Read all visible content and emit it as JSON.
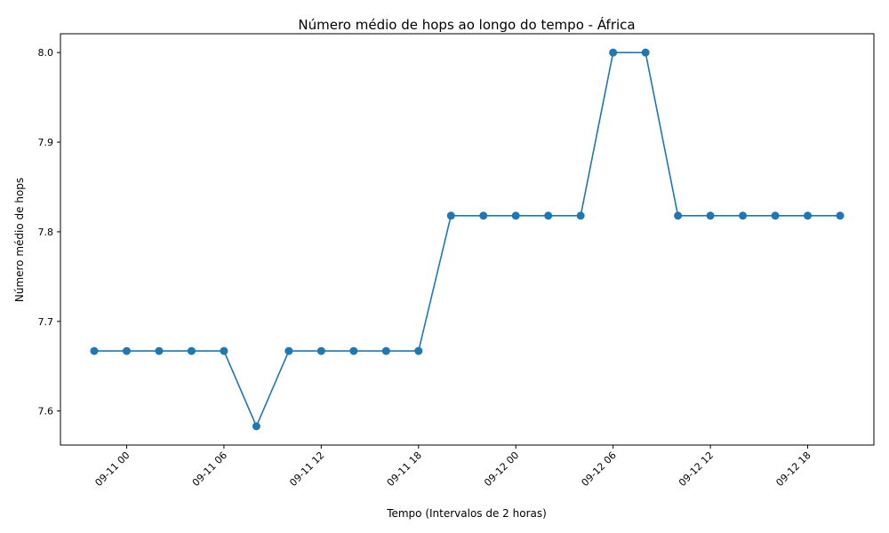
{
  "chart_data": {
    "type": "line",
    "title": "Número médio de hops ao longo do tempo - África",
    "xlabel": "Tempo (Intervalos de 2 horas)",
    "ylabel": "Número médio de hops",
    "x": [
      "09-10 22:00",
      "09-11 00:00",
      "09-11 02:00",
      "09-11 04:00",
      "09-11 06:00",
      "09-11 08:00",
      "09-11 10:00",
      "09-11 12:00",
      "09-11 14:00",
      "09-11 16:00",
      "09-11 18:00",
      "09-11 20:00",
      "09-11 22:00",
      "09-12 00:00",
      "09-12 02:00",
      "09-12 04:00",
      "09-12 06:00",
      "09-12 08:00",
      "09-12 10:00",
      "09-12 12:00",
      "09-12 14:00",
      "09-12 16:00",
      "09-12 18:00",
      "09-12 20:00"
    ],
    "series": [
      {
        "values": [
          7.667,
          7.667,
          7.667,
          7.667,
          7.667,
          7.583,
          7.667,
          7.667,
          7.667,
          7.667,
          7.667,
          7.818,
          7.818,
          7.818,
          7.818,
          7.818,
          8.0,
          8.0,
          7.818,
          7.818,
          7.818,
          7.818,
          7.818,
          7.818
        ],
        "color": "#1f77b4",
        "marker": "circle"
      }
    ],
    "xticks": [
      "09-11 00",
      "09-11 06",
      "09-11 12",
      "09-11 18",
      "09-12 00",
      "09-12 06",
      "09-12 12",
      "09-12 18"
    ],
    "yticks": [
      "7.6",
      "7.7",
      "7.8",
      "7.9",
      "8.0"
    ],
    "xlim": [
      "09-10 19:55",
      "09-12 22:05"
    ],
    "ylim": [
      7.562,
      8.021
    ],
    "grid": false,
    "legend": "none"
  }
}
